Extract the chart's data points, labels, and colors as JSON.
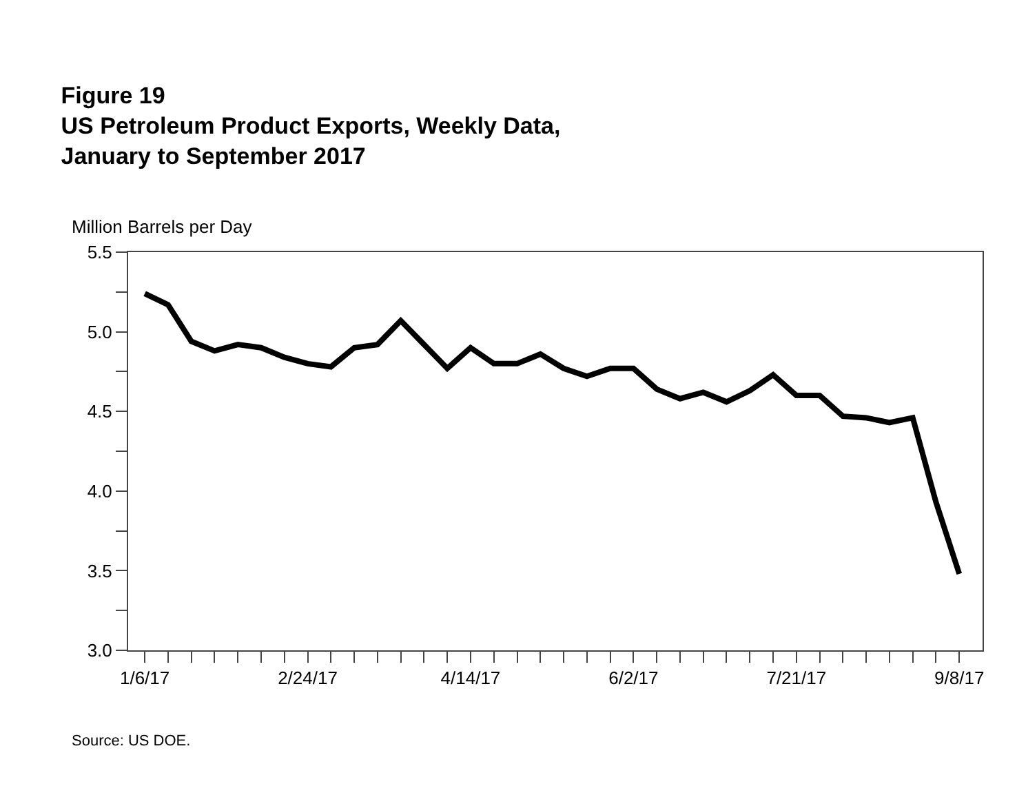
{
  "chart_data": {
    "type": "line",
    "title": "Figure 19\nUS Petroleum Product Exports, Weekly Data,\nJanuary to September 2017",
    "ylabel": "Million Barrels per Day",
    "x": [
      "2017-01-06",
      "2017-01-13",
      "2017-01-20",
      "2017-01-27",
      "2017-02-03",
      "2017-02-10",
      "2017-02-17",
      "2017-02-24",
      "2017-03-03",
      "2017-03-10",
      "2017-03-17",
      "2017-03-24",
      "2017-03-31",
      "2017-04-07",
      "2017-04-14",
      "2017-04-21",
      "2017-04-28",
      "2017-05-05",
      "2017-05-12",
      "2017-05-19",
      "2017-05-26",
      "2017-06-02",
      "2017-06-09",
      "2017-06-16",
      "2017-06-23",
      "2017-06-30",
      "2017-07-07",
      "2017-07-14",
      "2017-07-21",
      "2017-07-28",
      "2017-08-04",
      "2017-08-11",
      "2017-08-18",
      "2017-08-25",
      "2017-09-01",
      "2017-09-08"
    ],
    "series": [
      {
        "color": "#000000",
        "values": [
          5.24,
          5.17,
          4.94,
          4.88,
          4.92,
          4.9,
          4.84,
          4.8,
          4.78,
          4.9,
          4.92,
          5.07,
          4.92,
          4.77,
          4.9,
          4.8,
          4.8,
          4.86,
          4.77,
          4.72,
          4.77,
          4.77,
          4.64,
          4.58,
          4.62,
          4.56,
          4.63,
          4.73,
          4.6,
          4.6,
          4.47,
          4.46,
          4.43,
          4.46,
          3.93,
          3.48
        ]
      }
    ],
    "xlim": [
      "2017-01-01",
      "2017-09-15"
    ],
    "xticks": [
      {
        "value": "2017-01-06",
        "label": "1/6/17"
      },
      {
        "value": "2017-01-13",
        "label": null
      },
      {
        "value": "2017-01-20",
        "label": null
      },
      {
        "value": "2017-01-27",
        "label": null
      },
      {
        "value": "2017-02-03",
        "label": null
      },
      {
        "value": "2017-02-10",
        "label": null
      },
      {
        "value": "2017-02-17",
        "label": null
      },
      {
        "value": "2017-02-24",
        "label": "2/24/17"
      },
      {
        "value": "2017-03-03",
        "label": null
      },
      {
        "value": "2017-03-10",
        "label": null
      },
      {
        "value": "2017-03-17",
        "label": null
      },
      {
        "value": "2017-03-24",
        "label": null
      },
      {
        "value": "2017-03-31",
        "label": null
      },
      {
        "value": "2017-04-07",
        "label": null
      },
      {
        "value": "2017-04-14",
        "label": "4/14/17"
      },
      {
        "value": "2017-04-21",
        "label": null
      },
      {
        "value": "2017-04-28",
        "label": null
      },
      {
        "value": "2017-05-05",
        "label": null
      },
      {
        "value": "2017-05-12",
        "label": null
      },
      {
        "value": "2017-05-19",
        "label": null
      },
      {
        "value": "2017-05-26",
        "label": null
      },
      {
        "value": "2017-06-02",
        "label": "6/2/17"
      },
      {
        "value": "2017-06-09",
        "label": null
      },
      {
        "value": "2017-06-16",
        "label": null
      },
      {
        "value": "2017-06-23",
        "label": null
      },
      {
        "value": "2017-06-30",
        "label": null
      },
      {
        "value": "2017-07-07",
        "label": null
      },
      {
        "value": "2017-07-14",
        "label": null
      },
      {
        "value": "2017-07-21",
        "label": "7/21/17"
      },
      {
        "value": "2017-07-28",
        "label": null
      },
      {
        "value": "2017-08-04",
        "label": null
      },
      {
        "value": "2017-08-11",
        "label": null
      },
      {
        "value": "2017-08-18",
        "label": null
      },
      {
        "value": "2017-08-25",
        "label": null
      },
      {
        "value": "2017-09-01",
        "label": null
      },
      {
        "value": "2017-09-08",
        "label": "9/8/17"
      }
    ],
    "ylim": [
      3.0,
      5.5
    ],
    "yticks": [
      {
        "value": 3.0,
        "label": "3.0"
      },
      {
        "value": 3.25,
        "label": null
      },
      {
        "value": 3.5,
        "label": "3.5"
      },
      {
        "value": 3.75,
        "label": null
      },
      {
        "value": 4.0,
        "label": "4.0"
      },
      {
        "value": 4.25,
        "label": null
      },
      {
        "value": 4.5,
        "label": "4.5"
      },
      {
        "value": 4.75,
        "label": null
      },
      {
        "value": 5.0,
        "label": "5.0"
      },
      {
        "value": 5.25,
        "label": null
      },
      {
        "value": 5.5,
        "label": "5.5"
      }
    ],
    "annotations": [
      "Source: US DOE."
    ],
    "legend": false,
    "marker": "none",
    "line_style": "solid"
  }
}
